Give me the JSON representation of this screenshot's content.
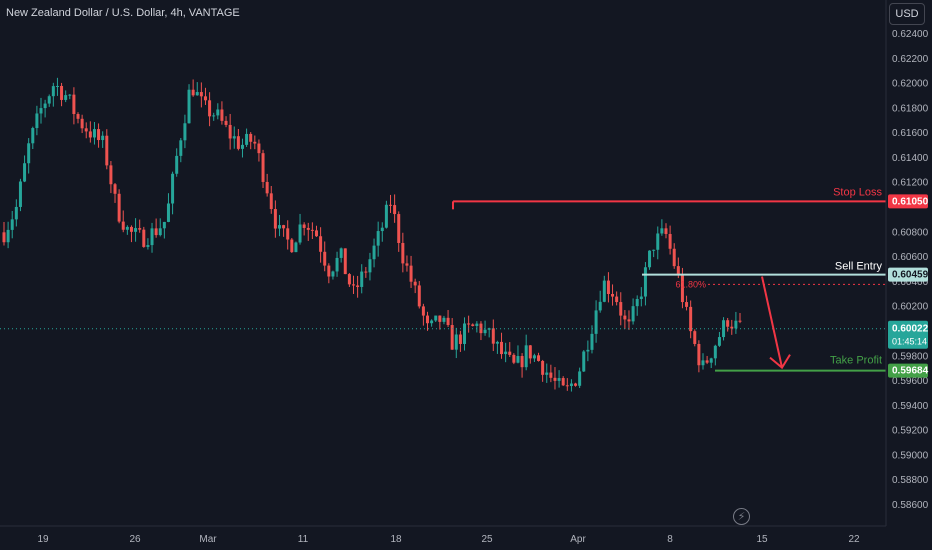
{
  "header": {
    "title": "New Zealand Dollar / U.S. Dollar, 4h, VANTAGE",
    "currency_button": "USD"
  },
  "colors": {
    "background": "#131722",
    "up_candle": "#26a69a",
    "down_candle": "#ef5350",
    "stop_loss": "#f23645",
    "sell_entry": "#b2dfdb",
    "take_profit": "#43a047",
    "axis_text": "#b2b5be"
  },
  "icons": {
    "bolt": "lightning-bolt-icon"
  },
  "chart_data": {
    "type": "candlestick",
    "title": "New Zealand Dollar / U.S. Dollar, 4h, VANTAGE",
    "ylim": [
      0.585,
      0.625
    ],
    "y_ticks": [
      "0.62400",
      "0.62200",
      "0.62000",
      "0.61800",
      "0.61600",
      "0.61400",
      "0.61200",
      "0.60800",
      "0.60600",
      "0.60400",
      "0.60200",
      "0.59800",
      "0.59600",
      "0.59400",
      "0.59200",
      "0.59000",
      "0.58800",
      "0.58600"
    ],
    "x_ticks": [
      "19",
      "26",
      "Mar",
      "11",
      "18",
      "25",
      "Apr",
      "8",
      "15",
      "22"
    ],
    "price_path": [
      0.608,
      0.61,
      0.615,
      0.618,
      0.62,
      0.619,
      0.617,
      0.616,
      0.615,
      0.61,
      0.608,
      0.6075,
      0.608,
      0.609,
      0.615,
      0.62,
      0.618,
      0.6175,
      0.616,
      0.615,
      0.6155,
      0.612,
      0.608,
      0.607,
      0.609,
      0.608,
      0.605,
      0.606,
      0.603,
      0.605,
      0.6075,
      0.6105,
      0.606,
      0.603,
      0.6,
      0.601,
      0.599,
      0.6,
      0.6005,
      0.5995,
      0.598,
      0.597,
      0.5985,
      0.5975,
      0.596,
      0.595,
      0.5965,
      0.6,
      0.604,
      0.603,
      0.6,
      0.603,
      0.607,
      0.608,
      0.6045,
      0.6,
      0.597,
      0.599,
      0.601,
      0.6002
    ],
    "levels": [
      {
        "label": "Stop Loss",
        "price": "0.61050",
        "value": 0.6105
      },
      {
        "label": "Sell Entry",
        "price": "0.60459",
        "value": 0.60459
      },
      {
        "label": "Take Profit",
        "price": "0.59684",
        "value": 0.59684
      }
    ],
    "fib_label": "61.80%",
    "fib_value": 0.6038,
    "current": {
      "price": "0.60022",
      "value": 0.60022,
      "countdown": "01:45:14"
    }
  }
}
